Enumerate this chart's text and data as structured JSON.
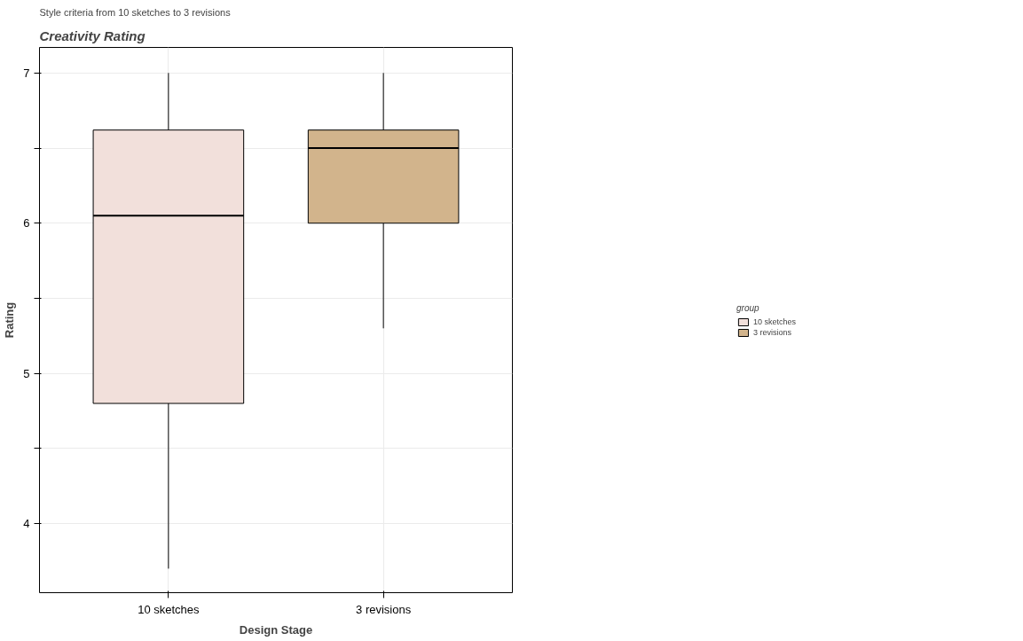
{
  "chart_data": {
    "type": "box",
    "title": "Creativity Rating",
    "subtitle": "Style criteria from 10 sketches to 3 revisions",
    "xlabel": "Design Stage",
    "ylabel": "Rating",
    "legend_title": "group",
    "categories": [
      "10 sketches",
      "3 revisions"
    ],
    "series": [
      {
        "name": "10 sketches",
        "color": "#f2e0db",
        "boxes": [
          {
            "low": 3.7,
            "q1": 4.8,
            "median": 6.05,
            "q3": 6.62,
            "high": 7.0
          },
          null
        ]
      },
      {
        "name": "3 revisions",
        "color": "#d2b48c",
        "boxes": [
          null,
          {
            "low": 5.3,
            "q1": 6.0,
            "median": 6.5,
            "q3": 6.62,
            "high": 7.0
          }
        ]
      }
    ],
    "ylim": [
      3.54,
      7.17
    ],
    "yticks": [
      4,
      {
        "value": 4.5,
        "label": null
      },
      5,
      {
        "value": 5.5,
        "label": null
      },
      6,
      {
        "value": 6.5,
        "label": null
      },
      7
    ],
    "grid": true,
    "legend": "right"
  }
}
